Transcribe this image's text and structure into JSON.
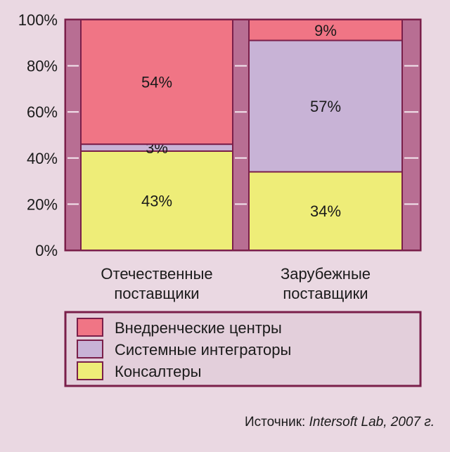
{
  "chart_data": {
    "type": "bar",
    "stacked": true,
    "percent": true,
    "ylim": [
      0,
      100
    ],
    "y_ticks": [
      "0%",
      "20%",
      "40%",
      "60%",
      "80%",
      "100%"
    ],
    "y_tick_values": [
      0,
      20,
      40,
      60,
      80,
      100
    ],
    "categories": [
      [
        "Отечественные",
        "поставщики"
      ],
      [
        "Зарубежные",
        "поставщики"
      ]
    ],
    "series": [
      {
        "name": "Консалтеры",
        "values": [
          43,
          34
        ],
        "labels": [
          "43%",
          "34%"
        ],
        "color": "#eeed78"
      },
      {
        "name": "Системные интеграторы",
        "values": [
          3,
          57
        ],
        "labels": [
          "3%",
          "57%"
        ],
        "color": "#c8b3d6"
      },
      {
        "name": "Внедренческие центры",
        "values": [
          54,
          9
        ],
        "labels": [
          "54%",
          "9%"
        ],
        "color": "#f07585"
      }
    ],
    "legend_order": [
      2,
      1,
      0
    ],
    "legend_position": "bottom",
    "grid": false
  },
  "colors": {
    "background": "#ead8e2",
    "frame": "#7a1f4a",
    "frame_fill": "#b86e93",
    "legend_bg": "#e3cfdb"
  },
  "source": {
    "prefix": "Источник: ",
    "italic": "Intersoft Lab, 2007 г."
  }
}
